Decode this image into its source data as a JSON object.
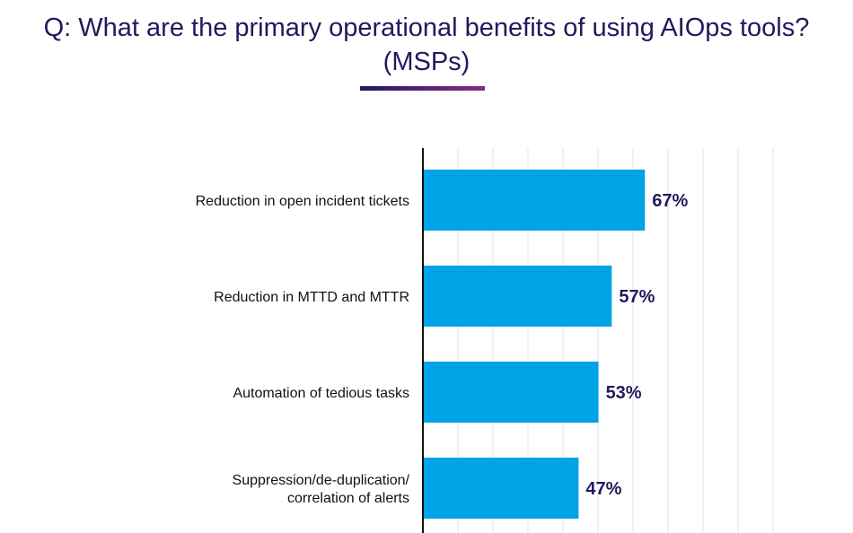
{
  "title": {
    "line1": "Q: What are the primary operational benefits of using AIOps tools?",
    "line2": "(MSPs)"
  },
  "colors": {
    "bar": "#00a3e5",
    "title": "#1f1b5c",
    "value_label": "#1f1b5c",
    "grid": "#e3e3e3",
    "axis": "#111111"
  },
  "chart_data": {
    "type": "bar",
    "orientation": "horizontal",
    "categories": [
      [
        "Reduction in open incident tickets"
      ],
      [
        "Reduction in MTTD and MTTR"
      ],
      [
        "Automation of tedious tasks"
      ],
      [
        "Suppression/de-duplication/",
        "correlation of alerts"
      ]
    ],
    "values": [
      67,
      57,
      53,
      47
    ],
    "value_labels": [
      "67%",
      "57%",
      "53%",
      "47%"
    ],
    "xlim": [
      0,
      100
    ],
    "grid": true
  }
}
